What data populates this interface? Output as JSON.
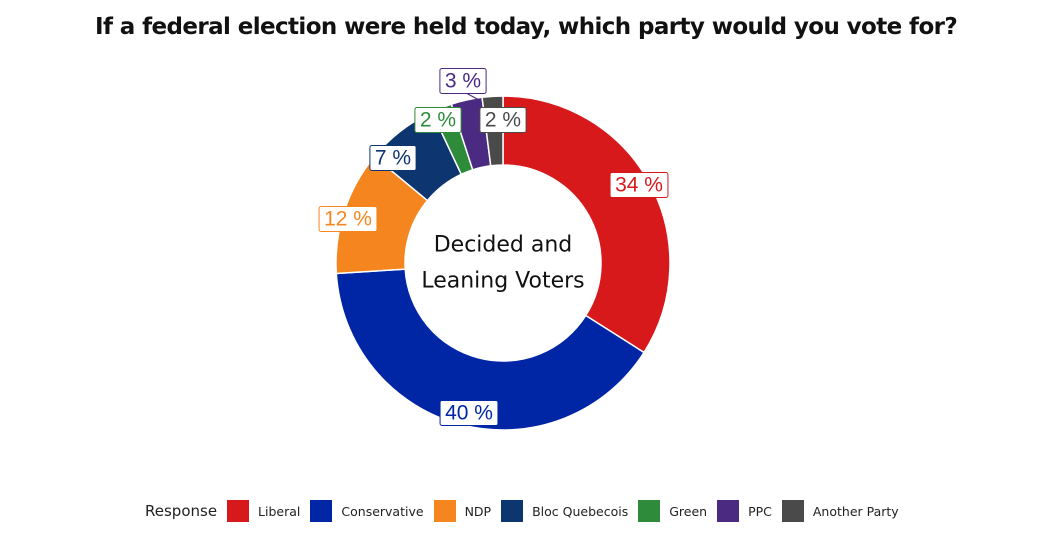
{
  "title": "If a federal election were held today, which party would you vote for?",
  "chart_data": {
    "type": "pie",
    "donut": true,
    "center_label": [
      "Decided and",
      "Leaning Voters"
    ],
    "legend_title": "Response",
    "legend_position": "bottom",
    "slices": [
      {
        "name": "Liberal",
        "value": 34,
        "label": "34 %",
        "color": "#d7191c"
      },
      {
        "name": "Conservative",
        "value": 40,
        "label": "40 %",
        "color": "#0026a6"
      },
      {
        "name": "NDP",
        "value": 12,
        "label": "12 %",
        "color": "#f5861f"
      },
      {
        "name": "Bloc Quebecois",
        "value": 7,
        "label": "7 %",
        "color": "#0d3570"
      },
      {
        "name": "Green",
        "value": 2,
        "label": "2 %",
        "color": "#2e8b3a"
      },
      {
        "name": "PPC",
        "value": 3,
        "label": "3 %",
        "color": "#4b2a82"
      },
      {
        "name": "Another Party",
        "value": 2,
        "label": "2 %",
        "color": "#4a4a4a"
      }
    ]
  }
}
